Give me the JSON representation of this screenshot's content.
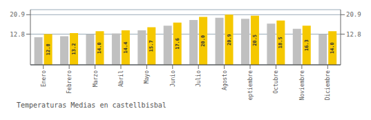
{
  "chart_data": {
    "type": "bar",
    "title": "Temperaturas Medias en castellbisbal",
    "categories": [
      "Enero",
      "Febrero",
      "Marzo",
      "Abril",
      "Mayo",
      "Junio",
      "Julio",
      "Agosto",
      "Septiembre",
      "Octubre",
      "Noviembre",
      "Diciembre"
    ],
    "series": [
      {
        "color": "#C0C0C0",
        "values": [
          11.5,
          11.9,
          12.7,
          13.1,
          14.4,
          16.3,
          18.7,
          19.6,
          19.2,
          17.2,
          15.0,
          12.7
        ]
      },
      {
        "color": "#F5C800",
        "values": [
          12.8,
          13.2,
          14.0,
          14.4,
          15.7,
          17.6,
          20.0,
          20.9,
          20.5,
          18.5,
          16.3,
          14.0
        ],
        "data_labels": true,
        "value_labels": [
          "12.8",
          "13.2",
          "14.0",
          "14.4",
          "15.7",
          "17.6",
          "20.0",
          "20.9",
          "20.5",
          "18.5",
          "16.3",
          "14.0"
        ]
      }
    ],
    "ylim": [
      0,
      23.0
    ],
    "yticks": [
      12.8,
      20.9
    ],
    "y2lim": [
      0,
      23.0
    ],
    "y2ticks": [
      12.8,
      20.9
    ],
    "grid": true
  }
}
